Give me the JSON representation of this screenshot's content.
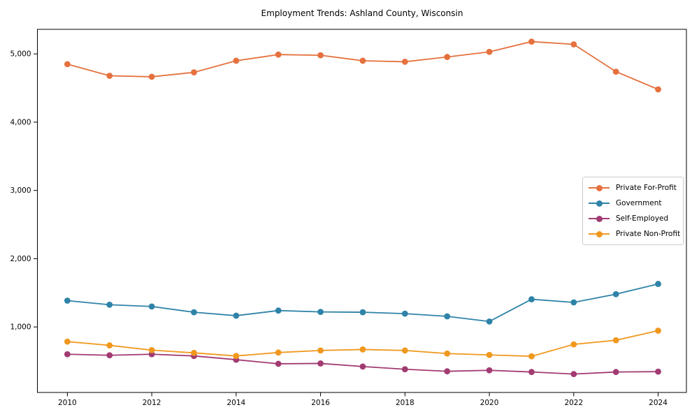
{
  "chart_data": {
    "type": "line",
    "title": "Employment Trends: Ashland County, Wisconsin",
    "xlabel": "",
    "ylabel": "",
    "x": [
      2010,
      2011,
      2012,
      2013,
      2014,
      2015,
      2016,
      2017,
      2018,
      2019,
      2020,
      2021,
      2022,
      2023,
      2024
    ],
    "series": [
      {
        "name": "Private For-Profit",
        "color": "#E5713E",
        "values": [
          4850,
          4680,
          4665,
          4730,
          4900,
          4990,
          4980,
          4900,
          4885,
          4955,
          5030,
          5180,
          5140,
          4740,
          4480
        ]
      },
      {
        "name": "Government",
        "color": "#2F83A8",
        "values": [
          1385,
          1325,
          1300,
          1215,
          1165,
          1240,
          1220,
          1215,
          1195,
          1155,
          1080,
          1405,
          1360,
          1480,
          1630
        ]
      },
      {
        "name": "Self-Employed",
        "color": "#A23B72",
        "values": [
          600,
          585,
          600,
          575,
          520,
          460,
          465,
          420,
          380,
          350,
          365,
          340,
          310,
          340,
          345
        ]
      },
      {
        "name": "Private Non-Profit",
        "color": "#F0981E",
        "values": [
          785,
          730,
          660,
          620,
          575,
          625,
          655,
          670,
          655,
          610,
          590,
          570,
          745,
          805,
          945
        ]
      }
    ],
    "xticks": [
      2010,
      2012,
      2014,
      2016,
      2018,
      2020,
      2022,
      2024
    ],
    "xtick_labels": [
      "2010",
      "2012",
      "2014",
      "2016",
      "2018",
      "2020",
      "2022",
      "2024"
    ],
    "yticks": [
      1000,
      2000,
      3000,
      4000,
      5000
    ],
    "ytick_labels": [
      "1,000",
      "2,000",
      "3,000",
      "4,000",
      "5,000"
    ],
    "xlim": [
      2009.29,
      2024.67
    ],
    "ylim": [
      40,
      5360
    ],
    "grid": false,
    "legend_position": "center-right",
    "marker": "circle"
  }
}
